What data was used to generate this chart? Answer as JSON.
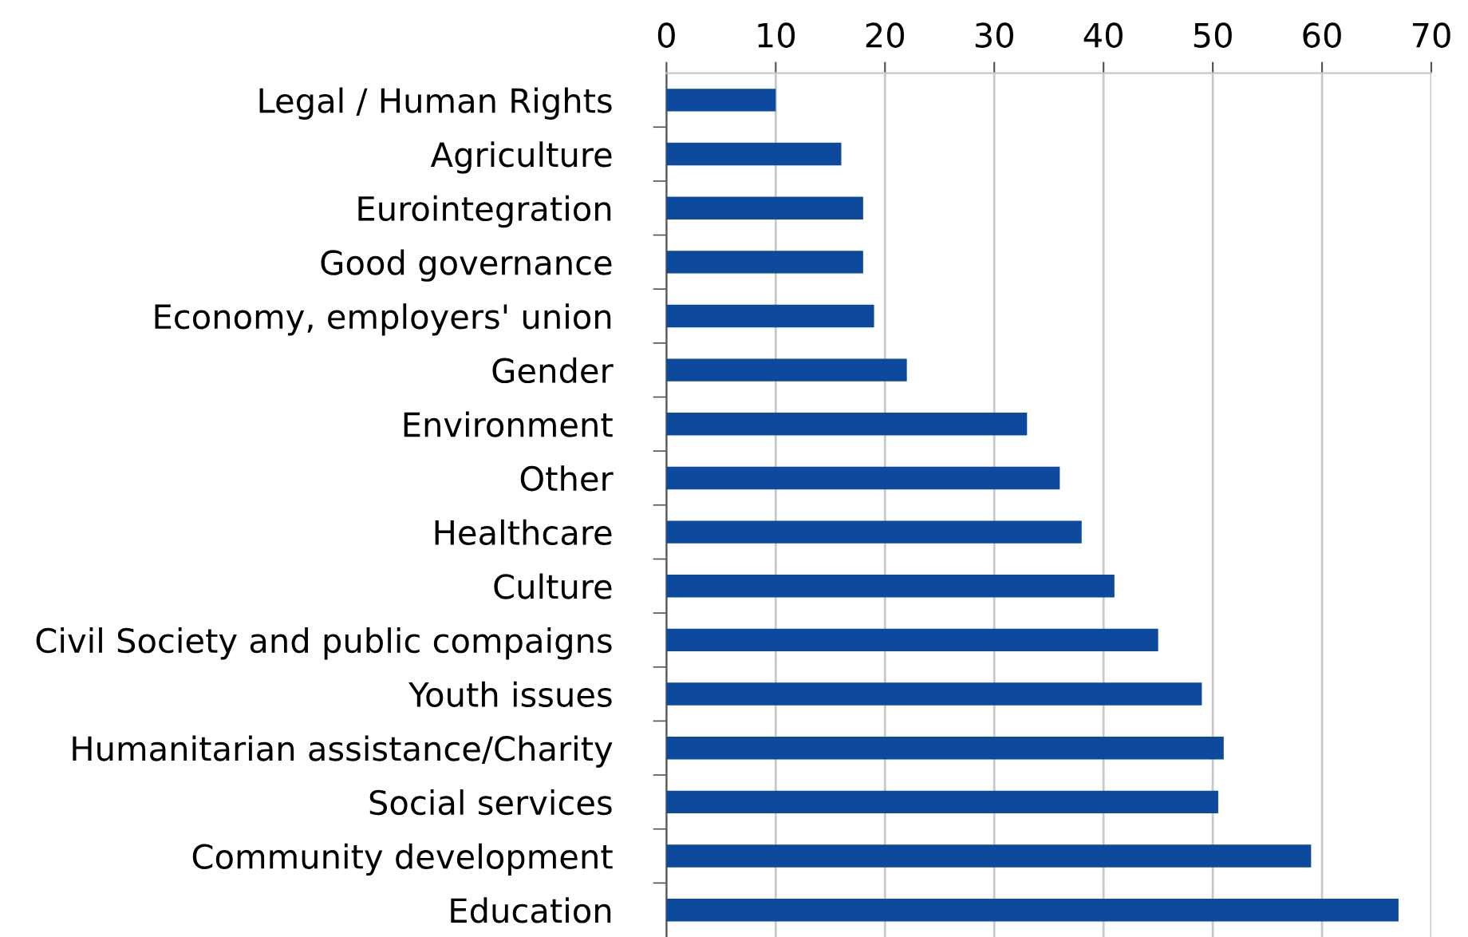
{
  "chart_data": {
    "type": "bar",
    "orientation": "horizontal",
    "categories": [
      "Legal / Human Rights",
      "Agriculture",
      "Eurointegration",
      "Good governance",
      "Economy, employers' union",
      "Gender",
      "Environment",
      "Other",
      "Healthcare",
      "Culture",
      "Civil Society and public compaigns",
      "Youth issues",
      "Humanitarian assistance/Charity",
      "Social services",
      "Community development",
      "Education"
    ],
    "values": [
      10,
      16,
      18,
      18,
      19,
      22,
      33,
      36,
      38,
      41,
      45,
      49,
      51,
      50.5,
      59,
      67
    ],
    "color": "#0d4a9e",
    "xlim": [
      0,
      70
    ],
    "xticks": [
      0,
      10,
      20,
      30,
      40,
      50,
      60,
      70
    ],
    "grid": "x"
  }
}
